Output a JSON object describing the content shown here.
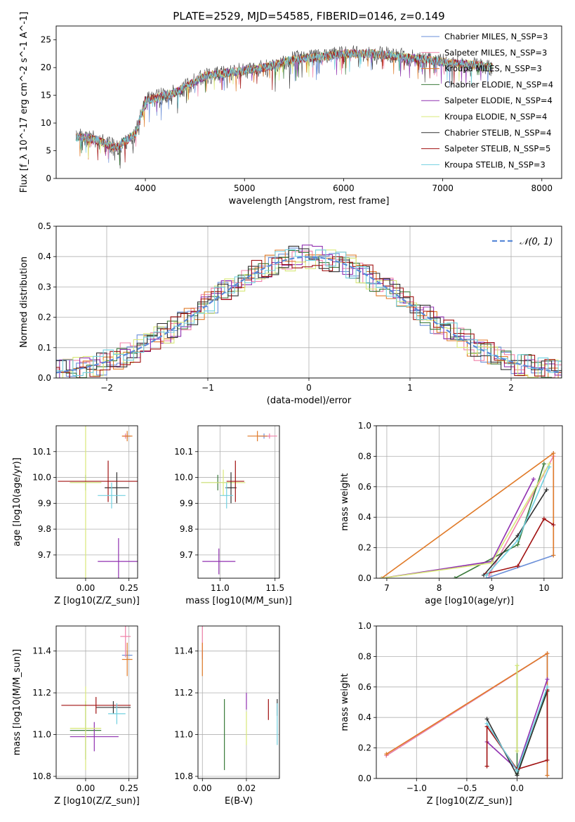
{
  "figure": {
    "title": "PLATE=2529, MJD=54585, FIBERID=0146, z=0.149"
  },
  "series_colors": [
    "#6a8fd8",
    "#f080a8",
    "#e07a28",
    "#3a7a3a",
    "#9030b0",
    "#d8e878",
    "#303030",
    "#a01010",
    "#70d0e0"
  ],
  "legend_labels": [
    "Chabrier MILES, N_SSP=3",
    "Salpeter MILES, N_SSP=3",
    "Kroupa MILES, N_SSP=3",
    "Chabrier ELODIE, N_SSP=4",
    "Salpeter ELODIE, N_SSP=4",
    "Kroupa ELODIE, N_SSP=4",
    "Chabrier STELIB, N_SSP=4",
    "Salpeter STELIB, N_SSP=5",
    "Kroupa STELIB, N_SSP=3"
  ],
  "chart_data": [
    {
      "id": "spectrum",
      "type": "line",
      "xlabel": "wavelength [Angstrom, rest frame]",
      "ylabel": "Flux [f_λ 10^-17 erg cm^-2 s^-1 A^-1]",
      "xlim": [
        3100,
        8200
      ],
      "ylim": [
        0,
        27.5
      ],
      "xticks": [
        4000,
        5000,
        6000,
        7000,
        8000
      ],
      "yticks": [
        0,
        5,
        10,
        15,
        20,
        25
      ],
      "continuum_points": [
        [
          3300,
          7.5
        ],
        [
          3500,
          7
        ],
        [
          3700,
          5.5
        ],
        [
          3900,
          8
        ],
        [
          4000,
          14
        ],
        [
          4300,
          15.5
        ],
        [
          4600,
          18.5
        ],
        [
          5000,
          19.5
        ],
        [
          5200,
          20
        ],
        [
          5500,
          21.5
        ],
        [
          5800,
          22
        ],
        [
          6000,
          22.5
        ],
        [
          6300,
          22.5
        ],
        [
          6550,
          22
        ],
        [
          6800,
          21.5
        ],
        [
          7000,
          21
        ],
        [
          7300,
          20.5
        ],
        [
          7500,
          20
        ]
      ],
      "data_extent": [
        3300,
        7500
      ],
      "grid": false
    },
    {
      "id": "residual-histogram",
      "type": "histogram",
      "xlabel": "(data-model)/error",
      "ylabel": "Normed distribution",
      "xlim": [
        -2.5,
        2.5
      ],
      "ylim": [
        0,
        0.5
      ],
      "xticks": [
        -2,
        -1,
        0,
        1,
        2
      ],
      "yticks": [
        0,
        0.1,
        0.2,
        0.3,
        0.4,
        0.5
      ],
      "bin_width": 0.1,
      "reference_curve": {
        "name": "N(0,1)",
        "mean": 0,
        "sigma": 1
      },
      "legend_location": "upper right",
      "grid": true
    },
    {
      "id": "age-vs-metallicity",
      "type": "errorbar",
      "xlabel": "Z [log10(Z/Z_sun)]",
      "ylabel": "age  [log10(age/yr)]",
      "xlim": [
        -0.17,
        0.3
      ],
      "ylim": [
        9.61,
        10.2
      ],
      "xticks": [
        0,
        0.25
      ],
      "yticks": [
        9.7,
        9.8,
        9.9,
        10.0,
        10.1
      ],
      "points": [
        {
          "s": 0,
          "x": 0.24,
          "y": 10.16,
          "xerr": 0.02,
          "yerr": 0.01
        },
        {
          "s": 1,
          "x": 0.23,
          "y": 10.16,
          "xerr": 0.02,
          "yerr": 0.01
        },
        {
          "s": 2,
          "x": 0.24,
          "y": 10.16,
          "xerr": 0.03,
          "yerr": 0.02
        },
        {
          "s": 3,
          "x": 0.0,
          "y": 9.98,
          "xerr": 0.09,
          "yerr": 0.03
        },
        {
          "s": 4,
          "x": 0.19,
          "y": 9.675,
          "xerr": 0.12,
          "yerr": 0.09
        },
        {
          "s": 5,
          "x": 0.0,
          "y": 9.98,
          "xerr": 0.09,
          "yerr": 0.38
        },
        {
          "s": 6,
          "x": 0.18,
          "y": 9.96,
          "xerr": 0.07,
          "yerr": 0.06
        },
        {
          "s": 7,
          "x": 0.13,
          "y": 9.985,
          "xerr": 0.29,
          "yerr": 0.08
        },
        {
          "s": 8,
          "x": 0.15,
          "y": 9.93,
          "xerr": 0.08,
          "yerr": 0.05
        }
      ],
      "grid": true
    },
    {
      "id": "age-vs-mass",
      "type": "errorbar",
      "xlabel": "mass [log10(M/M_sun)]",
      "ylabel": "",
      "xlim": [
        10.8,
        11.54
      ],
      "ylim": [
        9.61,
        10.2
      ],
      "xticks": [
        11.0,
        11.5
      ],
      "yticks": [
        9.7,
        9.8,
        9.9,
        10.0,
        10.1
      ],
      "points": [
        {
          "s": 0,
          "x": 11.4,
          "y": 10.16,
          "xerr": 0.05,
          "yerr": 0.01
        },
        {
          "s": 1,
          "x": 11.45,
          "y": 10.16,
          "xerr": 0.07,
          "yerr": 0.01
        },
        {
          "s": 2,
          "x": 11.34,
          "y": 10.16,
          "xerr": 0.09,
          "yerr": 0.02
        },
        {
          "s": 3,
          "x": 10.98,
          "y": 9.98,
          "xerr": 0.15,
          "yerr": 0.03
        },
        {
          "s": 4,
          "x": 10.99,
          "y": 9.675,
          "xerr": 0.15,
          "yerr": 0.05
        },
        {
          "s": 5,
          "x": 11.03,
          "y": 9.98,
          "xerr": 0.2,
          "yerr": 0.05
        },
        {
          "s": 6,
          "x": 11.1,
          "y": 9.96,
          "xerr": 0.05,
          "yerr": 0.06
        },
        {
          "s": 7,
          "x": 11.14,
          "y": 9.985,
          "xerr": 0.08,
          "yerr": 0.08
        },
        {
          "s": 8,
          "x": 11.06,
          "y": 9.93,
          "xerr": 0.06,
          "yerr": 0.05
        }
      ],
      "grid": true
    },
    {
      "id": "mass-weight-vs-age",
      "type": "line",
      "xlabel": "age  [log10(age/yr)]",
      "ylabel": "mass weight",
      "xlim": [
        6.8,
        10.35
      ],
      "ylim": [
        0,
        1.0
      ],
      "xticks": [
        7,
        8,
        9,
        10
      ],
      "yticks": [
        0.0,
        0.2,
        0.4,
        0.6,
        0.8,
        1.0
      ],
      "series": [
        {
          "s": 0,
          "points": [
            [
              8.9,
              0.0
            ],
            [
              10.18,
              0.15
            ],
            [
              10.18,
              0.82
            ]
          ]
        },
        {
          "s": 1,
          "points": [
            [
              8.95,
              0.02
            ],
            [
              10.18,
              0.8
            ]
          ]
        },
        {
          "s": 2,
          "points": [
            [
              6.9,
              0.0
            ],
            [
              10.18,
              0.82
            ],
            [
              10.18,
              0.15
            ]
          ]
        },
        {
          "s": 3,
          "points": [
            [
              8.3,
              0.0
            ],
            [
              9.5,
              0.22
            ],
            [
              10.0,
              0.75
            ]
          ]
        },
        {
          "s": 4,
          "points": [
            [
              6.9,
              0.0
            ],
            [
              9.0,
              0.11
            ],
            [
              9.8,
              0.65
            ]
          ]
        },
        {
          "s": 5,
          "points": [
            [
              6.9,
              0.0
            ],
            [
              9.0,
              0.1
            ],
            [
              10.1,
              0.75
            ]
          ]
        },
        {
          "s": 6,
          "points": [
            [
              8.85,
              0.02
            ],
            [
              9.5,
              0.28
            ],
            [
              10.05,
              0.58
            ]
          ]
        },
        {
          "s": 7,
          "points": [
            [
              8.9,
              0.03
            ],
            [
              9.5,
              0.08
            ],
            [
              10.0,
              0.39
            ],
            [
              10.18,
              0.35
            ]
          ]
        },
        {
          "s": 8,
          "points": [
            [
              8.9,
              0.02
            ],
            [
              9.5,
              0.25
            ],
            [
              10.1,
              0.73
            ]
          ]
        }
      ],
      "grid": true
    },
    {
      "id": "mass-vs-metallicity",
      "type": "errorbar",
      "xlabel": "Z [log10(Z/Z_sun)]",
      "ylabel": "mass [log10(M/M_sun)]",
      "xlim": [
        -0.17,
        0.3
      ],
      "ylim": [
        10.79,
        11.52
      ],
      "xticks": [
        0,
        0.25
      ],
      "yticks": [
        10.8,
        11.0,
        11.2,
        11.4
      ],
      "points": [
        {
          "s": 0,
          "x": 0.24,
          "y": 11.38,
          "xerr": 0.03,
          "yerr": 0.02
        },
        {
          "s": 1,
          "x": 0.23,
          "y": 11.47,
          "xerr": 0.03,
          "yerr": 0.1
        },
        {
          "s": 2,
          "x": 0.24,
          "y": 11.36,
          "xerr": 0.03,
          "yerr": 0.08
        },
        {
          "s": 3,
          "x": 0.0,
          "y": 11.02,
          "xerr": 0.09,
          "yerr": 0.14
        },
        {
          "s": 4,
          "x": 0.05,
          "y": 10.99,
          "xerr": 0.14,
          "yerr": 0.07
        },
        {
          "s": 5,
          "x": 0.0,
          "y": 11.03,
          "xerr": 0.09,
          "yerr": 0.2
        },
        {
          "s": 6,
          "x": 0.16,
          "y": 11.13,
          "xerr": 0.1,
          "yerr": 0.03
        },
        {
          "s": 7,
          "x": 0.06,
          "y": 11.14,
          "xerr": 0.2,
          "yerr": 0.04
        },
        {
          "s": 8,
          "x": 0.18,
          "y": 11.1,
          "xerr": 0.05,
          "yerr": 0.05
        }
      ],
      "grid": true
    },
    {
      "id": "mass-vs-ebv",
      "type": "errorbar",
      "xlabel": "E(B-V)",
      "ylabel": "",
      "xlim": [
        -0.002,
        0.035
      ],
      "ylim": [
        10.79,
        11.52
      ],
      "xticks": [
        0.0,
        0.02
      ],
      "xtick_labels": [
        "0.00",
        "0.02"
      ],
      "yticks": [
        10.8,
        11.0,
        11.2,
        11.4
      ],
      "points": [
        {
          "s": 0,
          "x": 0.0,
          "y": 11.38,
          "xerr": 0,
          "yerr": 0.02
        },
        {
          "s": 1,
          "x": 0.0,
          "y": 11.47,
          "xerr": 0,
          "yerr": 0.1
        },
        {
          "s": 2,
          "x": 0.0,
          "y": 11.36,
          "xerr": 0,
          "yerr": 0.08
        },
        {
          "s": 3,
          "x": 0.01,
          "y": 11.0,
          "xerr": 0,
          "yerr": 0.17
        },
        {
          "s": 4,
          "x": 0.02,
          "y": 11.16,
          "xerr": 0,
          "yerr": 0.04
        },
        {
          "s": 5,
          "x": 0.02,
          "y": 11.03,
          "xerr": 0,
          "yerr": 0.08
        },
        {
          "s": 6,
          "x": 0.034,
          "y": 11.13,
          "xerr": 0,
          "yerr": 0.04
        },
        {
          "s": 7,
          "x": 0.03,
          "y": 11.12,
          "xerr": 0,
          "yerr": 0.05
        },
        {
          "s": 8,
          "x": 0.034,
          "y": 11.05,
          "xerr": 0,
          "yerr": 0.1
        }
      ],
      "grid": true
    },
    {
      "id": "mass-weight-vs-metallicity",
      "type": "line",
      "xlabel": "Z [log10(Z/Z_sun)]",
      "ylabel": "mass weight",
      "xlim": [
        -1.4,
        0.45
      ],
      "ylim": [
        0,
        1.0
      ],
      "xticks": [
        -1.0,
        -0.5,
        0.0
      ],
      "yticks": [
        0.0,
        0.2,
        0.4,
        0.6,
        0.8,
        1.0
      ],
      "series": [
        {
          "s": 0,
          "points": [
            [
              -1.3,
              0.15
            ],
            [
              0.3,
              0.82
            ],
            [
              0.3,
              0.02
            ]
          ]
        },
        {
          "s": 1,
          "points": [
            [
              -1.3,
              0.15
            ],
            [
              0.3,
              0.82
            ]
          ]
        },
        {
          "s": 2,
          "points": [
            [
              -1.3,
              0.16
            ],
            [
              0.3,
              0.82
            ],
            [
              0.3,
              0.02
            ]
          ]
        },
        {
          "s": 3,
          "points": [
            [
              0.0,
              0.74
            ],
            [
              0.0,
              0.03
            ],
            [
              0.3,
              0.57
            ]
          ]
        },
        {
          "s": 4,
          "points": [
            [
              -0.3,
              0.24
            ],
            [
              0.0,
              0.06
            ],
            [
              0.3,
              0.65
            ]
          ]
        },
        {
          "s": 5,
          "points": [
            [
              0.0,
              0.18
            ],
            [
              0.0,
              0.74
            ]
          ]
        },
        {
          "s": 6,
          "points": [
            [
              -0.3,
              0.39
            ],
            [
              0.0,
              0.02
            ],
            [
              0.3,
              0.58
            ]
          ]
        },
        {
          "s": 7,
          "points": [
            [
              -0.3,
              0.08
            ],
            [
              -0.3,
              0.34
            ],
            [
              0.0,
              0.06
            ],
            [
              0.3,
              0.12
            ],
            [
              0.3,
              0.58
            ]
          ]
        },
        {
          "s": 8,
          "points": [
            [
              -0.3,
              0.36
            ],
            [
              0.0,
              0.05
            ],
            [
              0.3,
              0.6
            ]
          ]
        }
      ],
      "grid": true
    }
  ]
}
